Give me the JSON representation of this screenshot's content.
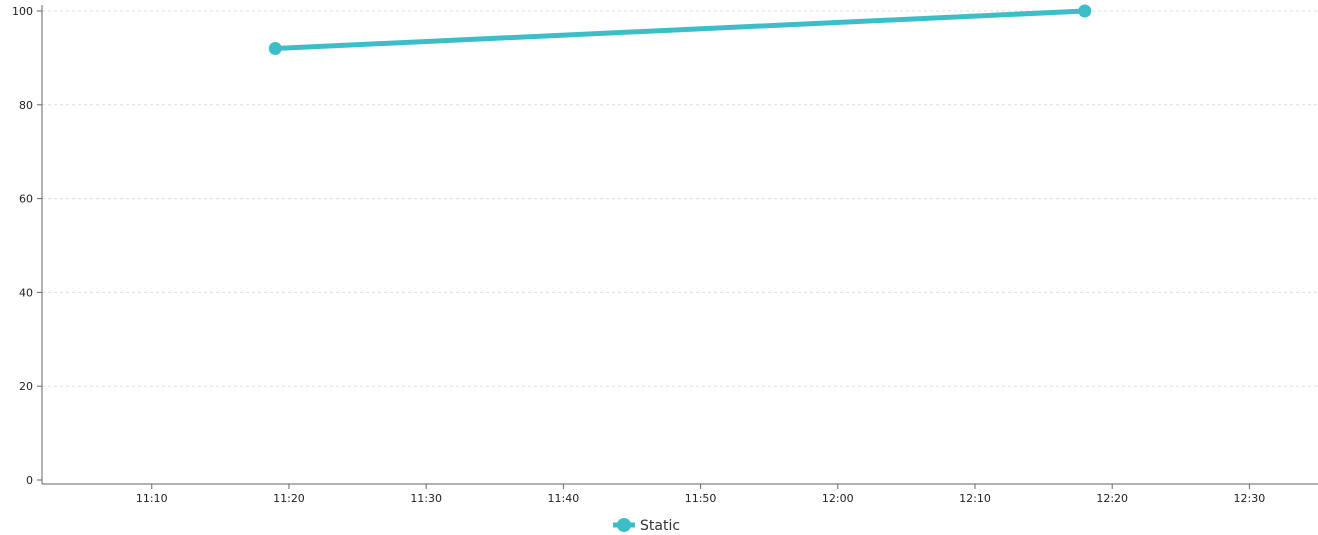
{
  "chart_data": {
    "type": "line",
    "x_type": "time",
    "xlim": [
      "11:02",
      "12:35"
    ],
    "ylim": [
      0,
      100
    ],
    "x_ticks": [
      "11:10",
      "11:20",
      "11:30",
      "11:40",
      "11:50",
      "12:00",
      "12:10",
      "12:20",
      "12:30"
    ],
    "y_ticks": [
      0,
      20,
      40,
      60,
      80,
      100
    ],
    "grid": true,
    "legend_position": "bottom-center",
    "series": [
      {
        "name": "Static",
        "color": "#3dbdc8",
        "points": [
          {
            "x": "11:19",
            "y": 92
          },
          {
            "x": "12:18",
            "y": 100
          }
        ]
      }
    ]
  }
}
